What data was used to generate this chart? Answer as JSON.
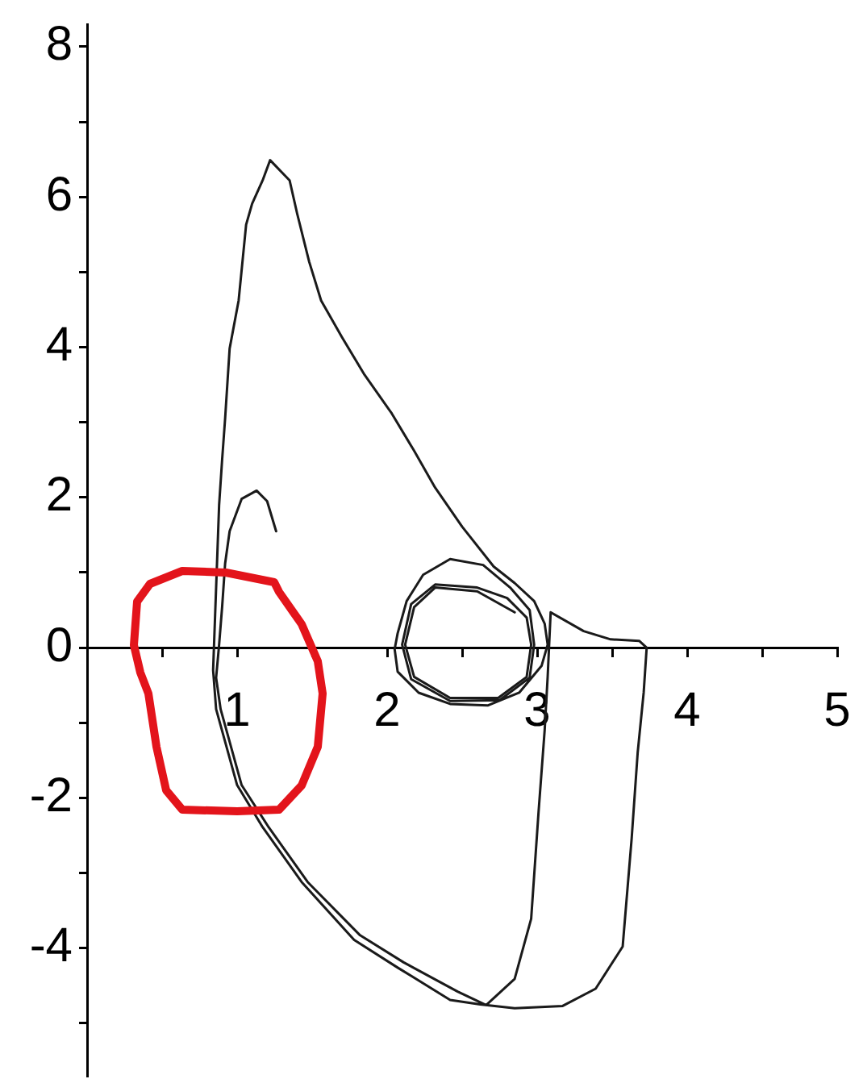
{
  "chart_data": {
    "type": "line",
    "xlim": [
      0,
      5
    ],
    "ylim": [
      -5.7,
      8.3
    ],
    "xticks": [
      {
        "value": 0.5,
        "label": null
      },
      1,
      {
        "value": 1.5,
        "label": null
      },
      2,
      {
        "value": 2.5,
        "label": null
      },
      3,
      {
        "value": 3.5,
        "label": null
      },
      4,
      {
        "value": 4.5,
        "label": null
      },
      5
    ],
    "yticks": [
      {
        "value": -5,
        "label": null
      },
      -4,
      {
        "value": -3,
        "label": null
      },
      -2,
      {
        "value": -1,
        "label": null
      },
      0,
      {
        "value": 1,
        "label": null
      },
      2,
      {
        "value": 3,
        "label": null
      },
      4,
      {
        "value": 5,
        "label": null
      },
      6,
      {
        "value": 7,
        "label": null
      },
      8
    ],
    "series": [
      {
        "color": "#1a1a1a",
        "x": [
          1.26,
          1.2,
          1.13,
          1.03,
          0.95,
          0.92,
          0.9,
          0.88,
          0.86,
          0.89,
          1.03,
          1.21,
          1.47,
          1.82,
          2.11,
          2.47,
          2.66,
          2.85,
          2.96,
          3.01,
          3.05,
          3.07,
          3.09,
          3.31,
          3.49,
          3.68,
          3.73,
          3.71,
          3.67,
          3.63,
          3.57,
          3.39,
          3.17,
          2.85,
          2.62,
          2.42,
          2.07,
          1.78,
          1.43,
          1.17,
          1.0,
          0.86,
          0.84,
          0.86,
          0.88,
          0.9,
          0.92,
          0.95,
          1.01,
          1.06,
          1.1,
          1.17,
          1.22,
          1.35,
          1.4,
          1.48,
          1.56,
          1.7,
          1.85,
          2.03,
          2.18,
          2.32,
          2.5,
          2.71,
          2.85,
          2.98,
          3.05,
          3.07,
          3.03,
          2.88,
          2.67,
          2.42,
          2.21,
          2.07,
          2.05,
          2.07,
          2.13,
          2.24,
          2.42,
          2.64,
          2.82,
          2.95,
          2.98,
          2.95,
          2.75,
          2.42,
          2.16,
          2.1,
          2.16,
          2.32,
          2.6,
          2.8,
          2.93,
          2.96,
          2.93,
          2.74,
          2.42,
          2.18,
          2.12,
          2.18,
          2.32,
          2.6,
          2.85
        ],
        "values": [
          1.55,
          1.95,
          2.09,
          1.98,
          1.55,
          1.12,
          0.54,
          0.04,
          -0.4,
          -0.82,
          -1.83,
          -2.39,
          -3.12,
          -3.83,
          -4.19,
          -4.58,
          -4.76,
          -4.41,
          -3.61,
          -2.17,
          -1.1,
          -0.39,
          0.47,
          0.22,
          0.11,
          0.09,
          0.0,
          -0.6,
          -1.4,
          -2.54,
          -3.98,
          -4.54,
          -4.77,
          -4.8,
          -4.75,
          -4.69,
          -4.26,
          -3.89,
          -3.12,
          -2.39,
          -1.83,
          -0.82,
          -0.3,
          0.8,
          1.9,
          2.5,
          3.05,
          3.98,
          4.62,
          5.63,
          5.91,
          6.22,
          6.49,
          6.22,
          5.78,
          5.14,
          4.62,
          4.13,
          3.63,
          3.12,
          2.62,
          2.13,
          1.61,
          1.08,
          0.86,
          0.62,
          0.32,
          0.04,
          -0.24,
          -0.6,
          -0.77,
          -0.75,
          -0.6,
          -0.32,
          -0.02,
          0.19,
          0.62,
          0.97,
          1.18,
          1.1,
          0.8,
          0.5,
          0.04,
          -0.4,
          -0.7,
          -0.71,
          -0.42,
          0.04,
          0.58,
          0.84,
          0.8,
          0.66,
          0.4,
          0.04,
          -0.39,
          -0.67,
          -0.67,
          -0.39,
          0.04,
          0.54,
          0.8,
          0.75,
          0.47
        ]
      }
    ]
  }
}
